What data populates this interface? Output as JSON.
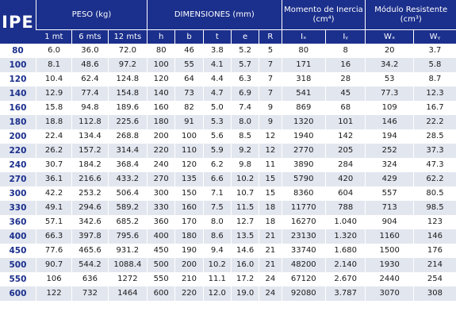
{
  "table": {
    "corner_label": "IPE",
    "group_headers": {
      "peso": "PESO (kg)",
      "dimensiones": "DIMENSIONES (mm)",
      "momento": "Momento de Inercia (cm⁴)",
      "modulo": "Módulo Resistente (cm³)"
    },
    "sub_headers": [
      "1 mt",
      "6 mts",
      "12 mts",
      "h",
      "b",
      "t",
      "e",
      "R",
      "Iₓ",
      "Iᵧ",
      "Wₓ",
      "Wᵧ"
    ],
    "rows": [
      [
        "80",
        "6.0",
        "36.0",
        "72.0",
        "80",
        "46",
        "3.8",
        "5.2",
        "5",
        "80",
        "8",
        "20",
        "3.7"
      ],
      [
        "100",
        "8.1",
        "48.6",
        "97.2",
        "100",
        "55",
        "4.1",
        "5.7",
        "7",
        "171",
        "16",
        "34.2",
        "5.8"
      ],
      [
        "120",
        "10.4",
        "62.4",
        "124.8",
        "120",
        "64",
        "4.4",
        "6.3",
        "7",
        "318",
        "28",
        "53",
        "8.7"
      ],
      [
        "140",
        "12.9",
        "77.4",
        "154.8",
        "140",
        "73",
        "4.7",
        "6.9",
        "7",
        "541",
        "45",
        "77.3",
        "12.3"
      ],
      [
        "160",
        "15.8",
        "94.8",
        "189.6",
        "160",
        "82",
        "5.0",
        "7.4",
        "9",
        "869",
        "68",
        "109",
        "16.7"
      ],
      [
        "180",
        "18.8",
        "112.8",
        "225.6",
        "180",
        "91",
        "5.3",
        "8.0",
        "9",
        "1320",
        "101",
        "146",
        "22.2"
      ],
      [
        "200",
        "22.4",
        "134.4",
        "268.8",
        "200",
        "100",
        "5.6",
        "8.5",
        "12",
        "1940",
        "142",
        "194",
        "28.5"
      ],
      [
        "220",
        "26.2",
        "157.2",
        "314.4",
        "220",
        "110",
        "5.9",
        "9.2",
        "12",
        "2770",
        "205",
        "252",
        "37.3"
      ],
      [
        "240",
        "30.7",
        "184.2",
        "368.4",
        "240",
        "120",
        "6.2",
        "9.8",
        "11",
        "3890",
        "284",
        "324",
        "47.3"
      ],
      [
        "270",
        "36.1",
        "216.6",
        "433.2",
        "270",
        "135",
        "6.6",
        "10.2",
        "15",
        "5790",
        "420",
        "429",
        "62.2"
      ],
      [
        "300",
        "42.2",
        "253.2",
        "506.4",
        "300",
        "150",
        "7.1",
        "10.7",
        "15",
        "8360",
        "604",
        "557",
        "80.5"
      ],
      [
        "330",
        "49.1",
        "294.6",
        "589.2",
        "330",
        "160",
        "7.5",
        "11.5",
        "18",
        "11770",
        "788",
        "713",
        "98.5"
      ],
      [
        "360",
        "57.1",
        "342.6",
        "685.2",
        "360",
        "170",
        "8.0",
        "12.7",
        "18",
        "16270",
        "1.040",
        "904",
        "123"
      ],
      [
        "400",
        "66.3",
        "397.8",
        "795.6",
        "400",
        "180",
        "8.6",
        "13.5",
        "21",
        "23130",
        "1.320",
        "1160",
        "146"
      ],
      [
        "450",
        "77.6",
        "465.6",
        "931.2",
        "450",
        "190",
        "9.4",
        "14.6",
        "21",
        "33740",
        "1.680",
        "1500",
        "176"
      ],
      [
        "500",
        "90.7",
        "544.2",
        "1088.4",
        "500",
        "200",
        "10.2",
        "16.0",
        "21",
        "48200",
        "2.140",
        "1930",
        "214"
      ],
      [
        "550",
        "106",
        "636",
        "1272",
        "550",
        "210",
        "11.1",
        "17.2",
        "24",
        "67120",
        "2.670",
        "2440",
        "254"
      ],
      [
        "600",
        "122",
        "732",
        "1464",
        "600",
        "220",
        "12.0",
        "19.0",
        "24",
        "92080",
        "3.787",
        "3070",
        "308"
      ]
    ]
  }
}
